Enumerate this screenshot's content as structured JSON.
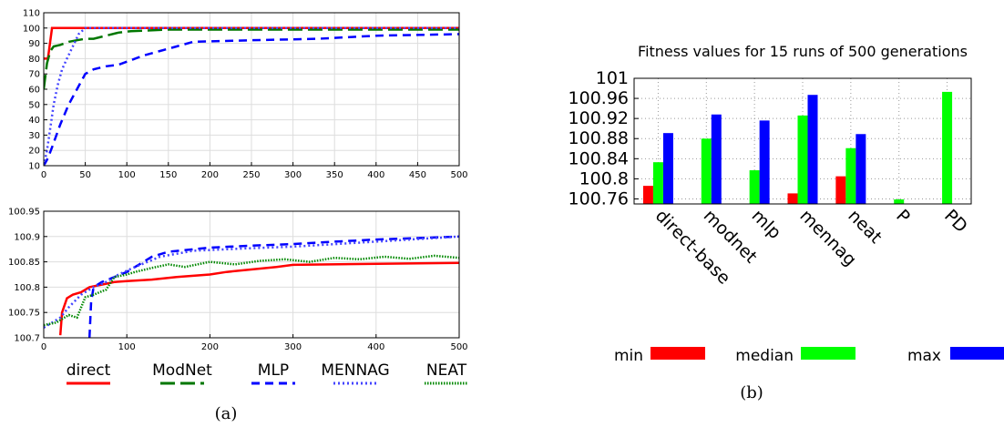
{
  "chart_data": [
    {
      "type": "line",
      "panel": "(a) top",
      "xlim": [
        0,
        500
      ],
      "ylim": [
        10,
        110
      ],
      "xticks": [
        "0",
        "50",
        "100",
        "150",
        "200",
        "250",
        "300",
        "350",
        "400",
        "450",
        "500"
      ],
      "yticks": [
        "10",
        "20",
        "30",
        "40",
        "50",
        "60",
        "70",
        "80",
        "90",
        "100",
        "110"
      ],
      "grid": true,
      "series": [
        {
          "name": "direct",
          "color": "#ff0000",
          "dash": "solid",
          "x": [
            0,
            5,
            10,
            500
          ],
          "y": [
            80,
            80,
            100,
            100
          ]
        },
        {
          "name": "ModNet",
          "color": "#007700",
          "dash": "long",
          "x": [
            0,
            4,
            8,
            12,
            20,
            30,
            40,
            50,
            60,
            75,
            90,
            105,
            150,
            500
          ],
          "y": [
            60,
            77,
            85,
            88,
            89,
            91,
            92,
            93,
            93,
            95,
            97,
            98,
            99,
            99
          ]
        },
        {
          "name": "MLP",
          "color": "#0000ff",
          "dash": "short",
          "x": [
            0,
            5,
            10,
            20,
            30,
            40,
            50,
            60,
            75,
            90,
            105,
            120,
            140,
            160,
            180,
            250,
            330,
            400,
            500
          ],
          "y": [
            10,
            15,
            22,
            37,
            50,
            60,
            70,
            73,
            75,
            76,
            79,
            82,
            85,
            88,
            91,
            92,
            93,
            95,
            96
          ]
        },
        {
          "name": "MENNAG",
          "color": "#4444ff",
          "dash": "dot",
          "x": [
            0,
            4,
            8,
            12,
            17,
            22,
            28,
            35,
            42,
            50,
            500
          ],
          "y": [
            10,
            20,
            35,
            50,
            63,
            73,
            80,
            88,
            96,
            100,
            100
          ]
        }
      ]
    },
    {
      "type": "line",
      "panel": "(a) bottom",
      "xlim": [
        0,
        500
      ],
      "ylim": [
        100.7,
        100.95
      ],
      "xticks": [
        "0",
        "100",
        "200",
        "300",
        "400",
        "500"
      ],
      "yticks": [
        "100.7",
        "100.75",
        "100.8",
        "100.85",
        "100.9",
        "100.95"
      ],
      "grid": true,
      "series": [
        {
          "name": "direct",
          "color": "#ff0000",
          "dash": "solid",
          "x": [
            20,
            22,
            28,
            35,
            45,
            55,
            70,
            85,
            100,
            130,
            160,
            200,
            220,
            280,
            300,
            500
          ],
          "y": [
            100.705,
            100.75,
            100.778,
            100.785,
            100.79,
            100.8,
            100.805,
            100.81,
            100.812,
            100.815,
            100.82,
            100.825,
            100.83,
            100.84,
            100.844,
            100.848
          ]
        },
        {
          "name": "MLP",
          "color": "#0000ff",
          "dash": "short",
          "x": [
            55,
            57,
            60,
            70,
            85,
            100,
            115,
            130,
            150,
            200,
            250,
            300,
            350,
            400,
            450,
            500
          ],
          "y": [
            100.7,
            100.77,
            100.8,
            100.81,
            100.82,
            100.83,
            100.845,
            100.86,
            100.87,
            100.878,
            100.882,
            100.885,
            100.89,
            100.894,
            100.897,
            100.9
          ]
        },
        {
          "name": "MENNAG",
          "color": "#4444ff",
          "dash": "dot",
          "x": [
            0,
            20,
            30,
            45,
            60,
            75,
            90,
            110,
            140,
            180,
            250,
            300,
            400,
            500
          ],
          "y": [
            100.72,
            100.74,
            100.76,
            100.785,
            100.8,
            100.81,
            100.825,
            100.84,
            100.86,
            100.872,
            100.877,
            100.88,
            100.89,
            100.9
          ]
        },
        {
          "name": "NEAT",
          "color": "#008800",
          "dash": "fine",
          "x": [
            0,
            15,
            30,
            40,
            50,
            60,
            75,
            85,
            100,
            110,
            130,
            150,
            170,
            200,
            230,
            260,
            290,
            320,
            350,
            380,
            410,
            440,
            470,
            500
          ],
          "y": [
            100.725,
            100.73,
            100.745,
            100.74,
            100.78,
            100.785,
            100.795,
            100.82,
            100.825,
            100.83,
            100.838,
            100.845,
            100.84,
            100.85,
            100.845,
            100.852,
            100.855,
            100.85,
            100.858,
            100.855,
            100.86,
            100.856,
            100.862,
            100.858
          ]
        }
      ]
    },
    {
      "type": "bar",
      "panel": "(b)",
      "title": "Fitness values for 15 runs of 500 generations",
      "categories": [
        "direct-base",
        "modnet",
        "mlp",
        "mennag",
        "neat",
        "P",
        "PD"
      ],
      "ylim": [
        100.75,
        101
      ],
      "yticks": [
        "100.76",
        "100.8",
        "100.84",
        "100.88",
        "100.92",
        "100.96",
        "101"
      ],
      "grid": true,
      "legend": "bottom",
      "series": [
        {
          "name": "min",
          "color": "#ff0000",
          "values": [
            100.786,
            null,
            null,
            100.771,
            100.805,
            null,
            null
          ]
        },
        {
          "name": "median",
          "color": "#00ff00",
          "values": [
            100.833,
            100.88,
            100.817,
            100.926,
            100.861,
            100.759,
            100.973
          ]
        },
        {
          "name": "max",
          "color": "#0000ff",
          "values": [
            100.891,
            100.928,
            100.916,
            100.967,
            100.889,
            null,
            null
          ]
        }
      ]
    }
  ],
  "legend_a": [
    {
      "name": "direct",
      "color": "#ff0000",
      "dash": "solid"
    },
    {
      "name": "ModNet",
      "color": "#007700",
      "dash": "long"
    },
    {
      "name": "MLP",
      "color": "#0000ff",
      "dash": "short"
    },
    {
      "name": "MENNAG",
      "color": "#4444ff",
      "dash": "dot"
    },
    {
      "name": "NEAT",
      "color": "#008800",
      "dash": "fine"
    }
  ],
  "captions": {
    "a": "(a)",
    "b": "(b)"
  }
}
